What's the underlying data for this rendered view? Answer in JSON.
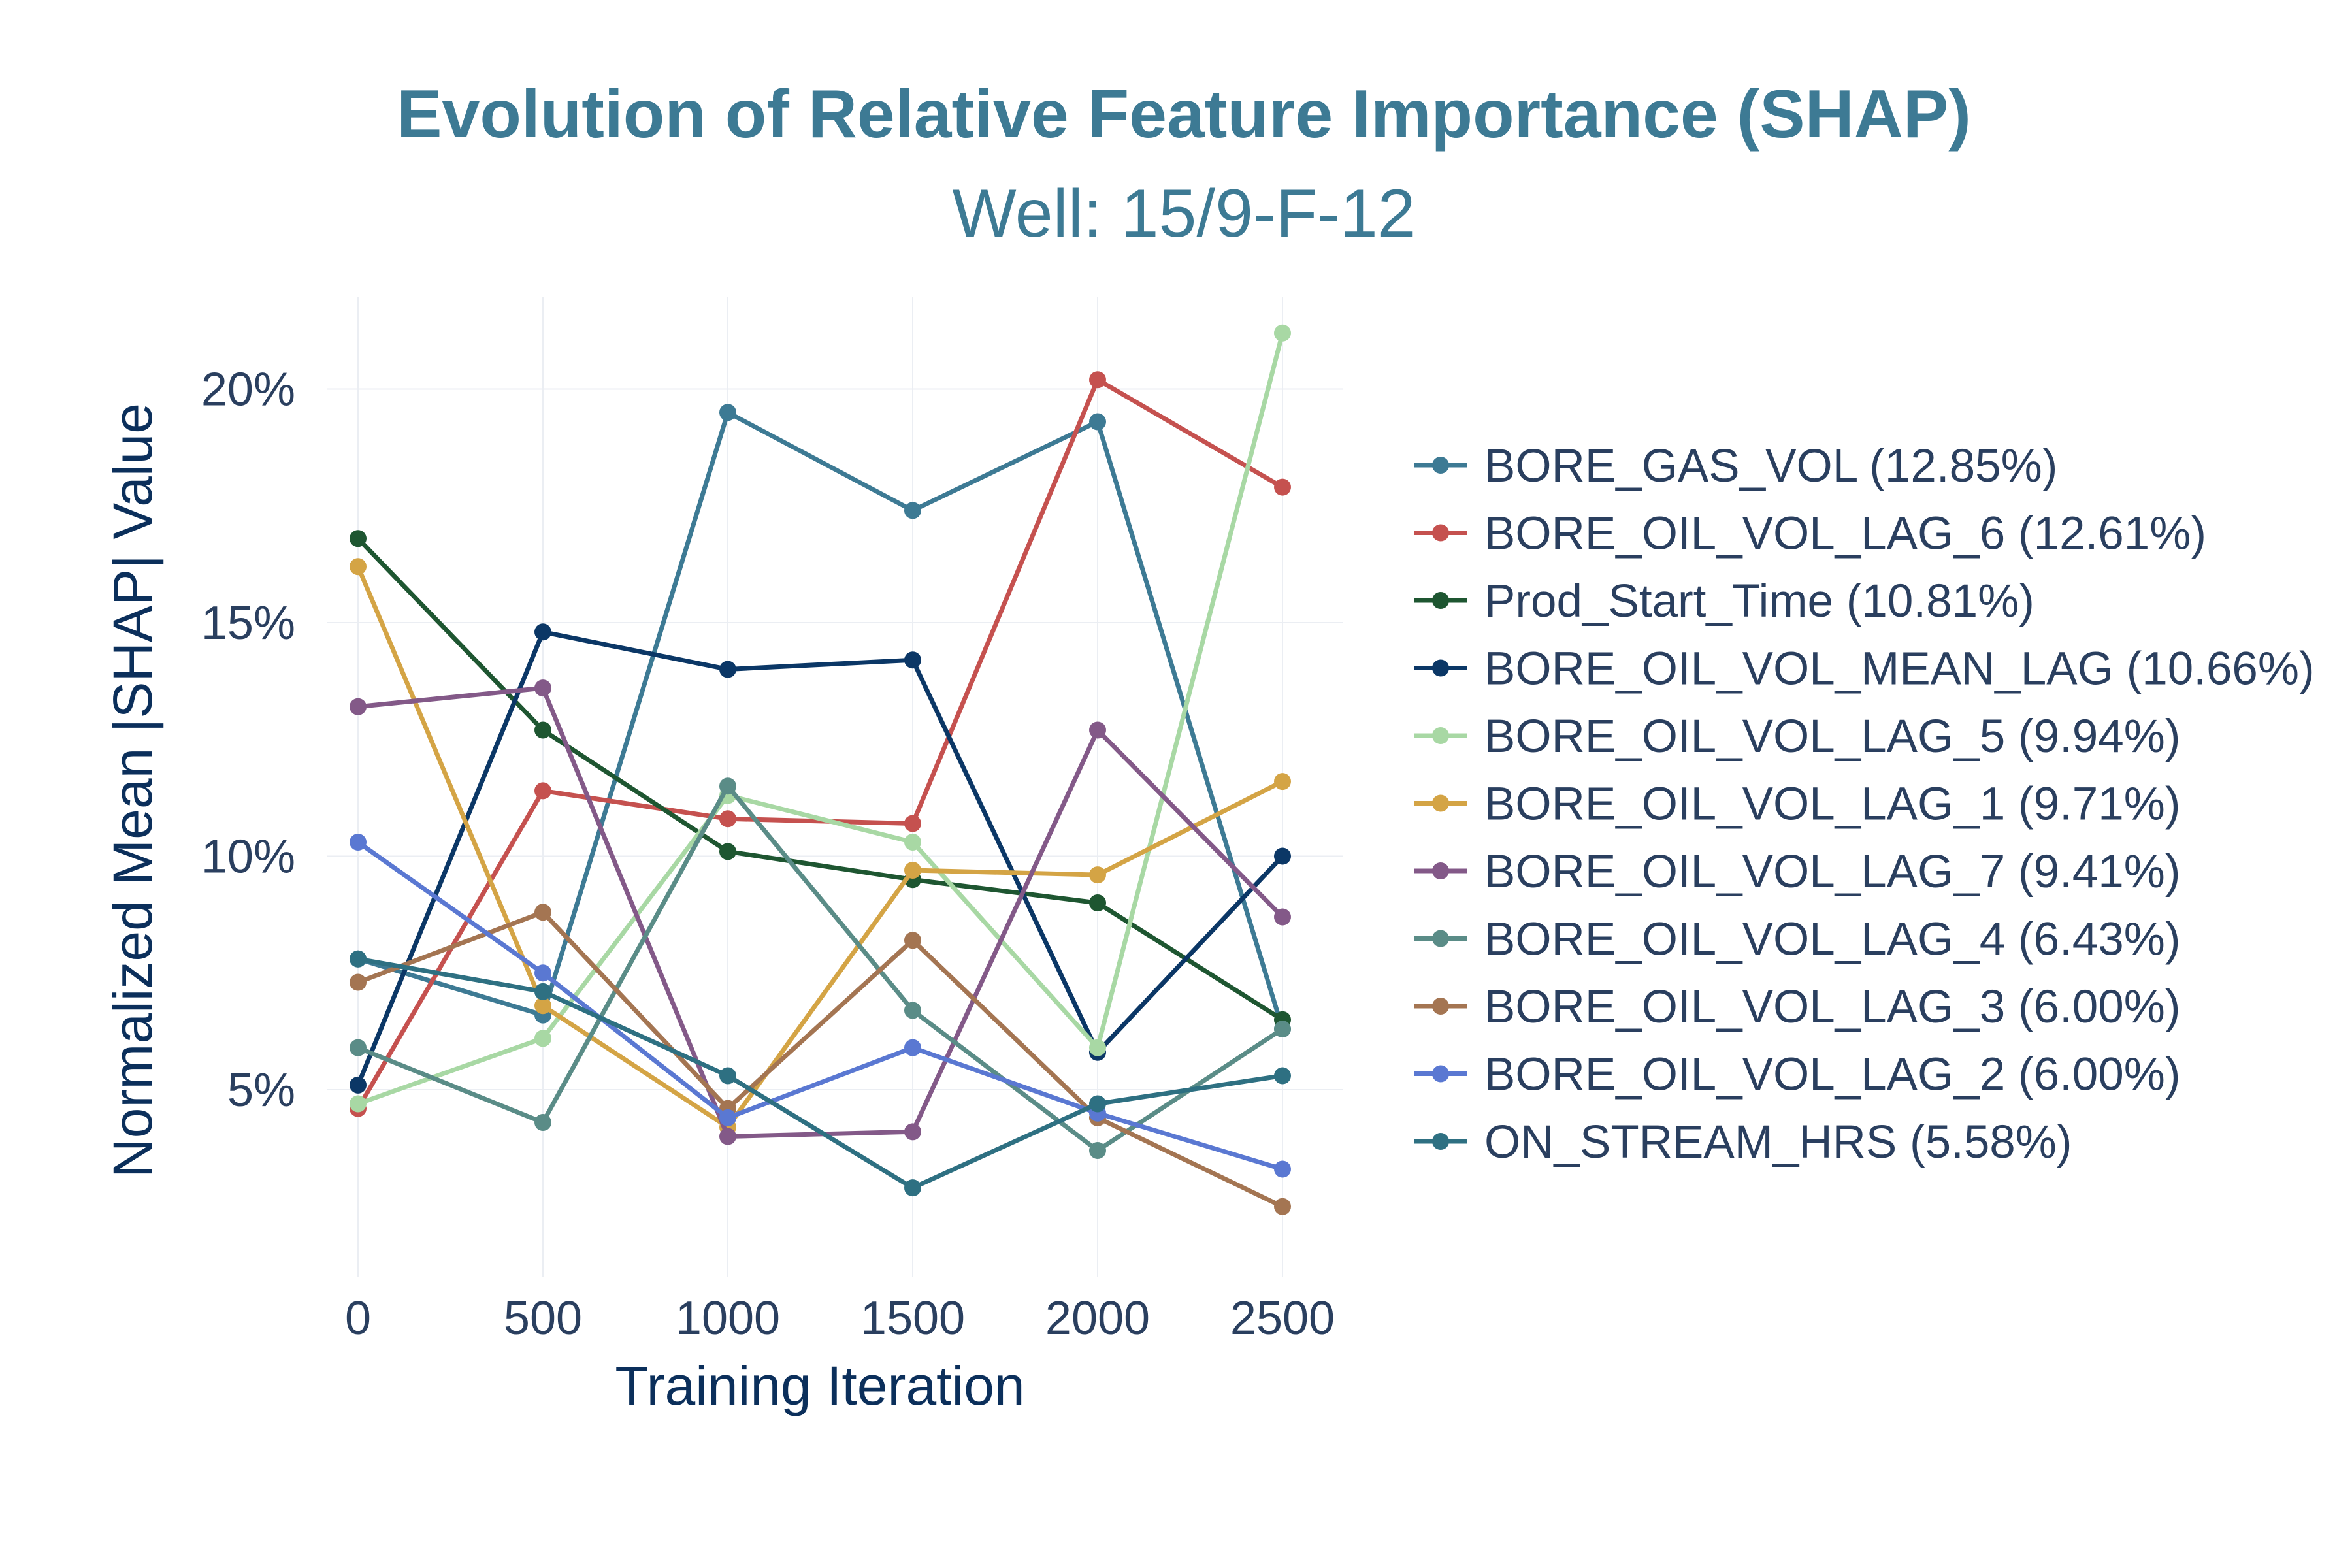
{
  "chart_data": {
    "type": "line",
    "title": "Evolution of Relative Feature Importance (SHAP)",
    "subtitle": "Well: 15/9-F-12",
    "xlabel": "Training Iteration",
    "ylabel": "Normalized Mean |SHAP| Value",
    "x": [
      0,
      500,
      1000,
      1500,
      2000,
      2500
    ],
    "x_ticks": [
      "0",
      "500",
      "1000",
      "1500",
      "2000",
      "2500"
    ],
    "y_ticks": [
      {
        "value": 5,
        "label": "5%"
      },
      {
        "value": 10,
        "label": "10%"
      },
      {
        "value": 15,
        "label": "15%"
      },
      {
        "value": 20,
        "label": "20%"
      }
    ],
    "xlim": [
      0,
      2500
    ],
    "ylim": [
      1.5,
      22.5
    ],
    "grid": true,
    "legend_position": "right",
    "series": [
      {
        "name": "BORE_GAS_VOL (12.85%)",
        "color": "#3d7a94",
        "values": [
          7.8,
          6.6,
          19.5,
          17.4,
          19.3,
          6.3
        ]
      },
      {
        "name": "BORE_OIL_VOL_LAG_6 (12.61%)",
        "color": "#c5514f",
        "values": [
          4.6,
          11.4,
          10.8,
          10.7,
          20.2,
          17.9
        ]
      },
      {
        "name": "Prod_Start_Time (10.81%)",
        "color": "#1e5631",
        "values": [
          16.8,
          12.7,
          10.1,
          9.5,
          9.0,
          6.5
        ]
      },
      {
        "name": "BORE_OIL_VOL_MEAN_LAG (10.66%)",
        "color": "#0b3766",
        "values": [
          5.1,
          14.8,
          14.0,
          14.2,
          5.8,
          10.0
        ]
      },
      {
        "name": "BORE_OIL_VOL_LAG_5 (9.94%)",
        "color": "#a8d8a4",
        "values": [
          4.7,
          6.1,
          11.3,
          10.3,
          5.9,
          21.2
        ]
      },
      {
        "name": "BORE_OIL_VOL_LAG_1 (9.71%)",
        "color": "#d4a445",
        "values": [
          16.2,
          6.8,
          4.2,
          9.7,
          9.6,
          11.6
        ]
      },
      {
        "name": "BORE_OIL_VOL_LAG_7 (9.41%)",
        "color": "#835988",
        "values": [
          13.2,
          13.6,
          4.0,
          4.1,
          12.7,
          8.7
        ]
      },
      {
        "name": "BORE_OIL_VOL_LAG_4 (6.43%)",
        "color": "#5a8c87",
        "values": [
          5.9,
          4.3,
          11.5,
          6.7,
          3.7,
          6.3
        ]
      },
      {
        "name": "BORE_OIL_VOL_LAG_3 (6.00%)",
        "color": "#a47552",
        "values": [
          7.3,
          8.8,
          4.6,
          8.2,
          4.4,
          2.5
        ]
      },
      {
        "name": "BORE_OIL_VOL_LAG_2 (6.00%)",
        "color": "#5a78d2",
        "values": [
          10.3,
          7.5,
          4.4,
          5.9,
          4.5,
          3.3
        ]
      },
      {
        "name": "ON_STREAM_HRS (5.58%)",
        "color": "#2e7082",
        "values": [
          7.8,
          7.1,
          5.3,
          2.9,
          4.7,
          5.3
        ]
      }
    ]
  }
}
